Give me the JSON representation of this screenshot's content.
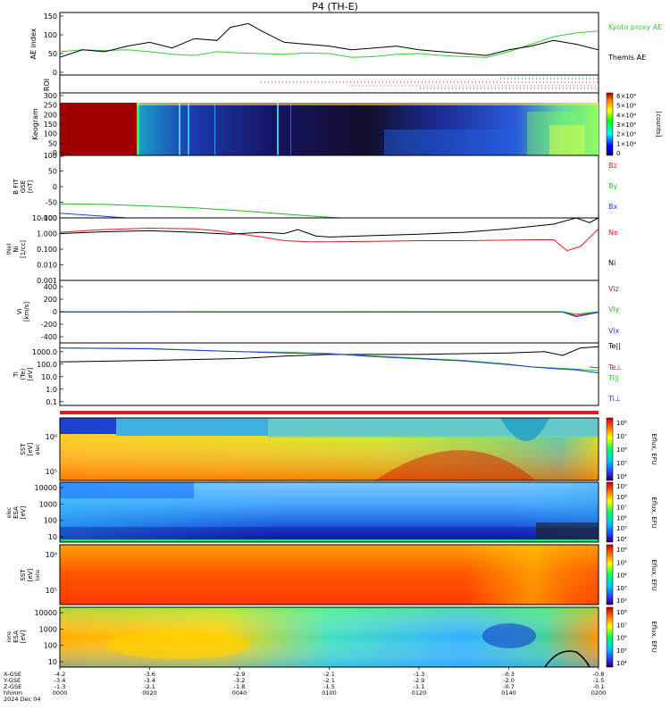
{
  "title": "P4 (TH-E)",
  "colors": {
    "black": "#000000",
    "red": "#e41a1c",
    "green": "#22bb22",
    "blue": "#1f3fd0",
    "kyoto": "#33cc33"
  },
  "chart_data": [
    {
      "id": "ae",
      "type": "line",
      "ylabel": "AE index",
      "ylim": [
        0,
        150
      ],
      "yticks": [
        "150",
        "100",
        "50",
        "0"
      ],
      "series": [
        {
          "name": "Kyoto proxy AE",
          "color": "#33cc33",
          "x": [
            0,
            5,
            10,
            15,
            20,
            25,
            30,
            35,
            40,
            45,
            50,
            55,
            60,
            65,
            70,
            75,
            80,
            85,
            90,
            95,
            100,
            105,
            110,
            115,
            120
          ],
          "values": [
            55,
            60,
            58,
            60,
            55,
            48,
            45,
            55,
            52,
            50,
            48,
            52,
            50,
            40,
            42,
            48,
            50,
            45,
            42,
            40,
            55,
            75,
            95,
            105,
            110
          ]
        },
        {
          "name": "Themis AE",
          "color": "#000000",
          "x": [
            0,
            5,
            10,
            15,
            20,
            25,
            30,
            35,
            38,
            42,
            45,
            50,
            55,
            60,
            65,
            70,
            75,
            80,
            85,
            90,
            95,
            100,
            105,
            110,
            115,
            120
          ],
          "values": [
            40,
            60,
            55,
            70,
            80,
            65,
            90,
            85,
            120,
            130,
            110,
            80,
            75,
            70,
            60,
            65,
            70,
            60,
            55,
            50,
            45,
            60,
            70,
            85,
            75,
            60
          ]
        }
      ]
    },
    {
      "id": "roi",
      "type": "line",
      "ylabel": "ROI"
    },
    {
      "id": "keogram",
      "type": "heatmap",
      "ylabel": "Keogram",
      "ylim": [
        0,
        300
      ],
      "yticks": [
        "300",
        "250",
        "200",
        "150",
        "100",
        "50",
        "0"
      ],
      "colorbar": {
        "label": "[counts]",
        "ticks": [
          "6×10⁴",
          "5×10⁴",
          "4×10⁴",
          "3×10⁴",
          "2×10⁴",
          "1×10⁴",
          "0"
        ]
      }
    },
    {
      "id": "bfield",
      "type": "line",
      "ylabel": "B FIT",
      "ylabel2": "GSE",
      "ylabel3": "[nT]",
      "ylim": [
        -100,
        100
      ],
      "yticks": [
        "100",
        "50",
        "0",
        "-50",
        "-100"
      ],
      "series": [
        {
          "name": "Bz",
          "color": "#e41a1c",
          "x": [
            0,
            1.5
          ],
          "values": [
            95,
            100
          ]
        },
        {
          "name": "By",
          "color": "#22bb22",
          "x": [
            0,
            10,
            20,
            30,
            40,
            50,
            60,
            65
          ],
          "values": [
            -55,
            -57,
            -62,
            -68,
            -77,
            -88,
            -98,
            -102
          ]
        },
        {
          "name": "Bx",
          "color": "#1f3fd0",
          "x": [
            0,
            5,
            10,
            15
          ],
          "values": [
            -85,
            -90,
            -95,
            -100
          ]
        }
      ]
    },
    {
      "id": "density",
      "type": "line",
      "ylabel": "Ni",
      "ylabel2": "[1/cc]",
      "ylabel3": "(Ne)",
      "log": true,
      "yticks": [
        "10.000",
        "1.000",
        "0.100",
        "0.010",
        "0.001"
      ],
      "series": [
        {
          "name": "Ne",
          "color": "#e41a1c",
          "x": [
            0,
            10,
            20,
            30,
            35,
            45,
            50,
            55,
            60,
            70,
            80,
            90,
            100,
            105,
            110,
            113,
            116,
            120
          ],
          "values": [
            1.2,
            1.8,
            2.2,
            2.0,
            1.5,
            0.6,
            0.35,
            0.3,
            0.3,
            0.32,
            0.35,
            0.35,
            0.38,
            0.4,
            0.4,
            0.08,
            0.15,
            2.0
          ]
        },
        {
          "name": "Ni",
          "color": "#000000",
          "x": [
            0,
            10,
            20,
            30,
            38,
            45,
            50,
            53,
            57,
            60,
            70,
            80,
            90,
            100,
            110,
            115,
            118,
            120
          ],
          "values": [
            1.0,
            1.3,
            1.5,
            1.2,
            0.9,
            1.2,
            1.0,
            1.8,
            0.7,
            0.6,
            0.75,
            0.9,
            1.2,
            2.0,
            4.0,
            10.0,
            5.0,
            10.0
          ]
        }
      ]
    },
    {
      "id": "velocity",
      "type": "line",
      "ylabel": "Vi",
      "ylabel2": "[km/s]",
      "ylim": [
        -500,
        500
      ],
      "yticks": [
        "400",
        "200",
        "0",
        "-200",
        "-400"
      ],
      "series": [
        {
          "name": "Viz",
          "color": "#e41a1c",
          "x": [
            0,
            112,
            115,
            120
          ],
          "values": [
            -5,
            -5,
            -60,
            -5
          ]
        },
        {
          "name": "Viy",
          "color": "#22bb22",
          "x": [
            0,
            112,
            115,
            120
          ],
          "values": [
            0,
            0,
            -40,
            0
          ]
        },
        {
          "name": "Vix",
          "color": "#1f3fd0",
          "x": [
            0,
            112,
            115,
            120
          ],
          "values": [
            -2,
            -5,
            -80,
            -10
          ]
        }
      ]
    },
    {
      "id": "temperature",
      "type": "line",
      "ylabel": "Ti",
      "ylabel2": "(Te)",
      "ylabel3": "[eV]",
      "log": true,
      "yticks": [
        "1000.0",
        "100.0",
        "10.0",
        "1.0",
        "0.1"
      ],
      "series": [
        {
          "name": "Te||",
          "color": "#000000",
          "x": [
            0,
            20,
            40,
            50,
            60,
            70,
            80,
            90,
            100,
            108,
            112,
            116,
            120
          ],
          "values": [
            150,
            200,
            280,
            450,
            600,
            600,
            600,
            700,
            800,
            1000,
            500,
            2000,
            2500
          ]
        },
        {
          "name": "Te⊥",
          "color": "#e41a1c",
          "x": [
            118,
            120
          ],
          "values": [
            60,
            50
          ]
        },
        {
          "name": "Ti||",
          "color": "#22bb22",
          "x": [
            0,
            20,
            40,
            50,
            60,
            70,
            80,
            90,
            100,
            105,
            110,
            115,
            120
          ],
          "values": [
            2000,
            1800,
            1000,
            900,
            700,
            450,
            300,
            200,
            100,
            60,
            50,
            40,
            30
          ]
        },
        {
          "name": "Ti⊥",
          "color": "#1f3fd0",
          "x": [
            0,
            20,
            40,
            50,
            60,
            70,
            80,
            90,
            100,
            105,
            110,
            115,
            120
          ],
          "values": [
            2000,
            1700,
            1000,
            800,
            700,
            400,
            270,
            180,
            90,
            60,
            45,
            35,
            20
          ]
        }
      ]
    },
    {
      "id": "sst_e",
      "type": "heatmap",
      "ylabel": "SST",
      "ylabel2": "[eV]",
      "ylabel3": "elec",
      "yticks": [
        "10⁶",
        "10⁵"
      ],
      "colorbar": {
        "label": "Eflux, EFU",
        "ticks": [
          "10⁸",
          "10⁷",
          "10⁶",
          "10⁵",
          "10⁴"
        ]
      }
    },
    {
      "id": "esa_e",
      "type": "heatmap",
      "ylabel": "ESA",
      "ylabel2": "[eV]",
      "ylabel3": "elec",
      "yticks": [
        "10000",
        "1000",
        "100",
        "10"
      ],
      "colorbar": {
        "label": "Eflux, EFU",
        "ticks": [
          "10⁹",
          "10⁸",
          "10⁷",
          "10⁶",
          "10⁵",
          "10⁴"
        ]
      }
    },
    {
      "id": "sst_i",
      "type": "heatmap",
      "ylabel": "SST",
      "ylabel2": "[eV]",
      "ylabel3": "ions",
      "yticks": [
        "10⁶",
        "10⁵"
      ],
      "colorbar": {
        "label": "Eflux, EFU",
        "ticks": [
          "10⁶",
          "10⁵",
          "10⁴",
          "10³",
          "10²"
        ]
      }
    },
    {
      "id": "esa_i",
      "type": "heatmap",
      "ylabel": "ESA",
      "ylabel2": "[eV]",
      "ylabel3": "ions",
      "yticks": [
        "10000",
        "1000",
        "100",
        "10"
      ],
      "colorbar": {
        "label": "Eflux, EFU",
        "ticks": [
          "10⁸",
          "10⁷",
          "10⁶",
          "10⁵",
          "10⁴"
        ]
      }
    }
  ],
  "xaxis": {
    "row_labels": [
      "X-GSE",
      "Y-GSE",
      "Z-GSE",
      "hhmm",
      "2024 Dec 04"
    ],
    "columns": [
      [
        "-4.2",
        "-3.4",
        "-1.3",
        "0000"
      ],
      [
        "-3.6",
        "-3.4",
        "-2.1",
        "0020"
      ],
      [
        "-2.9",
        "-3.2",
        "-1.8",
        "0040"
      ],
      [
        "-2.1",
        "-2.1",
        "-1.5",
        "0100"
      ],
      [
        "-1.3",
        "-2.9",
        "-1.1",
        "0120"
      ],
      [
        "-0.3",
        "-2.0",
        "-0.7",
        "0140"
      ],
      [
        "-0.8",
        "-1.5",
        "-0.1",
        "0200"
      ]
    ]
  }
}
